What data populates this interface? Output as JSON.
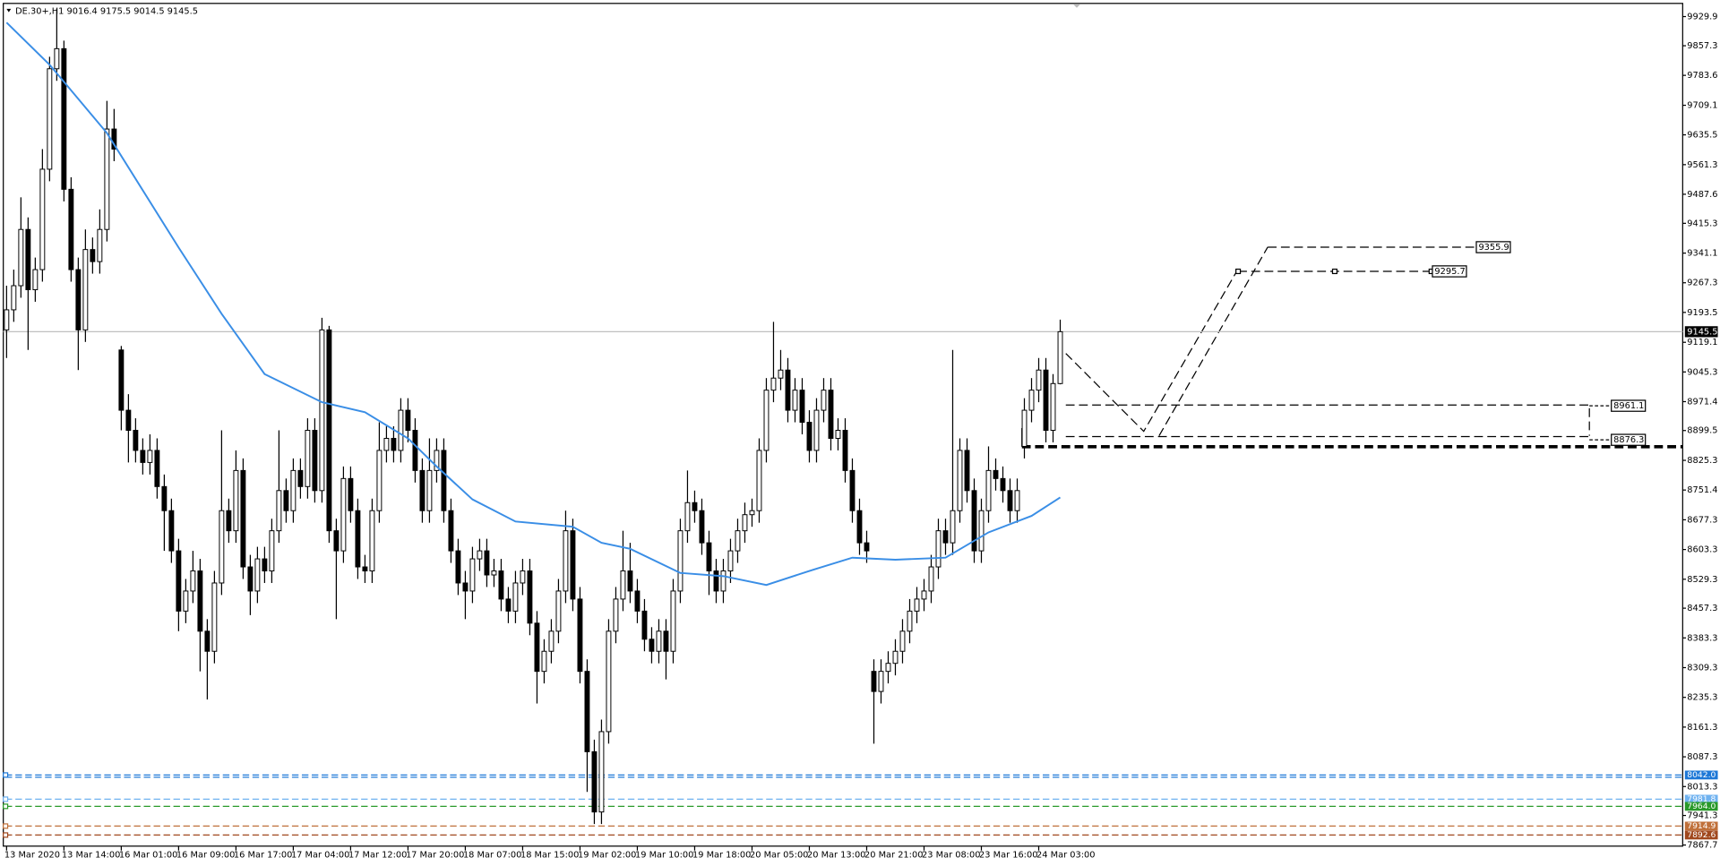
{
  "header": "DE.30+,H1  9016.4 9175.5 9014.5 9145.5",
  "chart_data": {
    "type": "candlestick",
    "categories": [
      "13 Mar 2020",
      null,
      null,
      null,
      null,
      null,
      null,
      null,
      "13 Mar 14:00",
      null,
      null,
      null,
      null,
      null,
      null,
      null,
      "16 Mar 01:00",
      null,
      null,
      null,
      null,
      null,
      null,
      null,
      "16 Mar 09:00",
      null,
      null,
      null,
      null,
      null,
      null,
      null,
      "16 Mar 17:00",
      null,
      null,
      null,
      null,
      null,
      null,
      null,
      "17 Mar 04:00",
      null,
      null,
      null,
      null,
      null,
      null,
      null,
      "17 Mar 12:00",
      null,
      null,
      null,
      null,
      null,
      null,
      null,
      "17 Mar 20:00",
      null,
      null,
      null,
      null,
      null,
      null,
      null,
      "18 Mar 07:00",
      null,
      null,
      null,
      null,
      null,
      null,
      null,
      "18 Mar 15:00",
      null,
      null,
      null,
      null,
      null,
      null,
      null,
      "19 Mar 02:00",
      null,
      null,
      null,
      null,
      null,
      null,
      null,
      "19 Mar 10:00",
      null,
      null,
      null,
      null,
      null,
      null,
      null,
      "19 Mar 18:00",
      null,
      null,
      null,
      null,
      null,
      null,
      null,
      "20 Mar 05:00",
      null,
      null,
      null,
      null,
      null,
      null,
      null,
      "20 Mar 13:00",
      null,
      null,
      null,
      null,
      null,
      null,
      null,
      "20 Mar 21:00",
      null,
      null,
      null,
      null,
      null,
      null,
      null,
      "23 Mar 08:00",
      null,
      null,
      null,
      null,
      null,
      null,
      null,
      "23 Mar 16:00",
      null,
      null,
      null,
      null,
      null,
      null,
      null,
      "24 Mar 03:00",
      null,
      null,
      null
    ],
    "ohlc": [
      [
        9150,
        9260,
        9080,
        9200
      ],
      [
        9200,
        9300,
        9170,
        9260
      ],
      [
        9260,
        9480,
        9230,
        9400
      ],
      [
        9400,
        9430,
        9100,
        9250
      ],
      [
        9250,
        9330,
        9220,
        9300
      ],
      [
        9300,
        9600,
        9270,
        9550
      ],
      [
        9550,
        9830,
        9520,
        9800
      ],
      [
        9800,
        9950,
        9770,
        9850
      ],
      [
        9850,
        9870,
        9470,
        9500
      ],
      [
        9500,
        9530,
        9270,
        9300
      ],
      [
        9300,
        9330,
        9050,
        9150
      ],
      [
        9150,
        9400,
        9120,
        9350
      ],
      [
        9350,
        9380,
        9290,
        9320
      ],
      [
        9320,
        9450,
        9290,
        9400
      ],
      [
        9400,
        9720,
        9370,
        9650
      ],
      [
        9650,
        9700,
        9570,
        9600
      ],
      [
        9100,
        9110,
        8900,
        8950
      ],
      [
        8950,
        8990,
        8820,
        8900
      ],
      [
        8900,
        8930,
        8820,
        8850
      ],
      [
        8850,
        8880,
        8790,
        8820
      ],
      [
        8820,
        8890,
        8790,
        8850
      ],
      [
        8850,
        8880,
        8730,
        8760
      ],
      [
        8760,
        8790,
        8600,
        8700
      ],
      [
        8700,
        8730,
        8570,
        8600
      ],
      [
        8600,
        8630,
        8400,
        8450
      ],
      [
        8450,
        8530,
        8420,
        8500
      ],
      [
        8500,
        8600,
        8470,
        8550
      ],
      [
        8550,
        8580,
        8300,
        8400
      ],
      [
        8400,
        8430,
        8230,
        8350
      ],
      [
        8350,
        8550,
        8320,
        8520
      ],
      [
        8520,
        8900,
        8490,
        8700
      ],
      [
        8700,
        8730,
        8620,
        8650
      ],
      [
        8650,
        8850,
        8620,
        8800
      ],
      [
        8800,
        8830,
        8530,
        8560
      ],
      [
        8560,
        8590,
        8440,
        8500
      ],
      [
        8500,
        8610,
        8470,
        8580
      ],
      [
        8580,
        8610,
        8520,
        8550
      ],
      [
        8550,
        8680,
        8520,
        8650
      ],
      [
        8650,
        8900,
        8620,
        8750
      ],
      [
        8750,
        8780,
        8670,
        8700
      ],
      [
        8700,
        8830,
        8670,
        8800
      ],
      [
        8800,
        8830,
        8730,
        8760
      ],
      [
        8760,
        8930,
        8730,
        8900
      ],
      [
        8900,
        8930,
        8720,
        8750
      ],
      [
        8750,
        9180,
        8720,
        9150
      ],
      [
        9150,
        9160,
        8620,
        8650
      ],
      [
        8650,
        8680,
        8430,
        8600
      ],
      [
        8600,
        8810,
        8570,
        8780
      ],
      [
        8780,
        8810,
        8670,
        8700
      ],
      [
        8700,
        8730,
        8530,
        8560
      ],
      [
        8560,
        8590,
        8520,
        8550
      ],
      [
        8550,
        8730,
        8520,
        8700
      ],
      [
        8700,
        8920,
        8670,
        8850
      ],
      [
        8850,
        8910,
        8820,
        8880
      ],
      [
        8880,
        8910,
        8820,
        8850
      ],
      [
        8850,
        8980,
        8820,
        8950
      ],
      [
        8950,
        8980,
        8870,
        8900
      ],
      [
        8900,
        8930,
        8770,
        8800
      ],
      [
        8800,
        8830,
        8670,
        8700
      ],
      [
        8700,
        8880,
        8670,
        8800
      ],
      [
        8800,
        8880,
        8770,
        8850
      ],
      [
        8850,
        8880,
        8670,
        8700
      ],
      [
        8700,
        8730,
        8570,
        8600
      ],
      [
        8600,
        8630,
        8490,
        8520
      ],
      [
        8520,
        8550,
        8430,
        8500
      ],
      [
        8500,
        8610,
        8470,
        8580
      ],
      [
        8580,
        8630,
        8550,
        8600
      ],
      [
        8600,
        8630,
        8510,
        8540
      ],
      [
        8540,
        8580,
        8510,
        8550
      ],
      [
        8550,
        8580,
        8450,
        8480
      ],
      [
        8480,
        8510,
        8420,
        8450
      ],
      [
        8450,
        8550,
        8420,
        8520
      ],
      [
        8520,
        8580,
        8490,
        8550
      ],
      [
        8550,
        8580,
        8390,
        8420
      ],
      [
        8420,
        8450,
        8220,
        8300
      ],
      [
        8300,
        8380,
        8270,
        8350
      ],
      [
        8350,
        8430,
        8320,
        8400
      ],
      [
        8400,
        8530,
        8370,
        8500
      ],
      [
        8500,
        8700,
        8470,
        8650
      ],
      [
        8650,
        8680,
        8450,
        8480
      ],
      [
        8480,
        8510,
        8270,
        8300
      ],
      [
        8300,
        8330,
        8000,
        8100
      ],
      [
        8100,
        8130,
        7920,
        7950
      ],
      [
        7950,
        8180,
        7920,
        8150
      ],
      [
        8150,
        8430,
        8120,
        8400
      ],
      [
        8400,
        8510,
        8370,
        8480
      ],
      [
        8480,
        8650,
        8450,
        8550
      ],
      [
        8550,
        8620,
        8470,
        8500
      ],
      [
        8500,
        8530,
        8420,
        8450
      ],
      [
        8450,
        8480,
        8350,
        8380
      ],
      [
        8380,
        8410,
        8320,
        8350
      ],
      [
        8350,
        8430,
        8320,
        8400
      ],
      [
        8400,
        8430,
        8280,
        8350
      ],
      [
        8350,
        8530,
        8320,
        8500
      ],
      [
        8500,
        8680,
        8470,
        8650
      ],
      [
        8650,
        8800,
        8620,
        8720
      ],
      [
        8720,
        8750,
        8670,
        8700
      ],
      [
        8700,
        8730,
        8590,
        8620
      ],
      [
        8620,
        8650,
        8490,
        8550
      ],
      [
        8550,
        8580,
        8470,
        8500
      ],
      [
        8500,
        8580,
        8470,
        8550
      ],
      [
        8550,
        8630,
        8520,
        8600
      ],
      [
        8600,
        8680,
        8570,
        8650
      ],
      [
        8650,
        8720,
        8620,
        8690
      ],
      [
        8690,
        8730,
        8660,
        8700
      ],
      [
        8700,
        8880,
        8670,
        8850
      ],
      [
        8850,
        9030,
        8820,
        9000
      ],
      [
        9000,
        9170,
        8970,
        9030
      ],
      [
        9030,
        9100,
        9000,
        9050
      ],
      [
        9050,
        9080,
        8920,
        8950
      ],
      [
        8950,
        9030,
        8920,
        9000
      ],
      [
        9000,
        9030,
        8890,
        8920
      ],
      [
        8920,
        8950,
        8820,
        8850
      ],
      [
        8850,
        8980,
        8820,
        8950
      ],
      [
        8950,
        9030,
        8920,
        9000
      ],
      [
        9000,
        9030,
        8850,
        8880
      ],
      [
        8880,
        8930,
        8850,
        8900
      ],
      [
        8900,
        8930,
        8770,
        8800
      ],
      [
        8800,
        8830,
        8670,
        8700
      ],
      [
        8700,
        8730,
        8590,
        8620
      ],
      [
        8620,
        8650,
        8570,
        8600
      ],
      [
        8300,
        8330,
        8120,
        8250
      ],
      [
        8250,
        8330,
        8220,
        8300
      ],
      [
        8300,
        8350,
        8270,
        8320
      ],
      [
        8320,
        8380,
        8290,
        8350
      ],
      [
        8350,
        8430,
        8320,
        8400
      ],
      [
        8400,
        8480,
        8370,
        8450
      ],
      [
        8450,
        8510,
        8420,
        8480
      ],
      [
        8480,
        8530,
        8450,
        8500
      ],
      [
        8500,
        8590,
        8470,
        8560
      ],
      [
        8560,
        8680,
        8530,
        8650
      ],
      [
        8650,
        8680,
        8590,
        8620
      ],
      [
        8620,
        9100,
        8590,
        8700
      ],
      [
        8700,
        8880,
        8670,
        8850
      ],
      [
        8850,
        8880,
        8720,
        8750
      ],
      [
        8750,
        8780,
        8570,
        8600
      ],
      [
        8600,
        8730,
        8570,
        8700
      ],
      [
        8700,
        8860,
        8670,
        8800
      ],
      [
        8800,
        8830,
        8750,
        8780
      ],
      [
        8780,
        8810,
        8720,
        8750
      ],
      [
        8750,
        8780,
        8670,
        8700
      ],
      [
        8700,
        8780,
        8670,
        8750
      ],
      [
        8860,
        8980,
        8830,
        8950
      ],
      [
        8950,
        9030,
        8920,
        9000
      ],
      [
        9000,
        9080,
        8970,
        9050
      ],
      [
        9050,
        9080,
        8870,
        8900
      ],
      [
        8900,
        9040,
        8870,
        9016.4
      ],
      [
        9016.4,
        9175.5,
        9014.5,
        9145.5
      ]
    ],
    "up_color": "#ffffff",
    "down_color": "#000000",
    "ma": {
      "color": "#3a8ee6",
      "x": [
        0,
        6,
        14,
        24,
        30,
        36,
        44,
        50,
        56,
        60,
        65,
        71,
        79,
        83,
        87,
        94,
        100,
        106,
        112,
        118,
        124,
        131,
        137,
        143,
        147
      ],
      "values": [
        9915,
        9810,
        9640,
        9355,
        9190,
        9040,
        8970,
        8945,
        8880,
        8810,
        8728,
        8673,
        8660,
        8620,
        8605,
        8545,
        8537,
        8515,
        8550,
        8583,
        8578,
        8583,
        8646,
        8687,
        8733
      ]
    },
    "ylim": [
      7867.7,
      9929.9
    ],
    "yticks": [
      9929.9,
      9857.3,
      9783.6,
      9709.1,
      9635.5,
      9561.3,
      9487.6,
      9415.3,
      9341.1,
      9267.3,
      9193.5,
      9119.1,
      9045.3,
      8971.4,
      8899.5,
      8825.3,
      8751.4,
      8677.3,
      8603.3,
      8529.3,
      8457.3,
      8383.3,
      8309.3,
      8235.3,
      8161.3,
      8087.3,
      8013.3,
      7941.3,
      7867.7
    ],
    "bid": 9145.5,
    "levels": [
      9355.9,
      9295.7,
      8961.1,
      8876.3
    ],
    "hlines": [
      {
        "value": 8042,
        "label": "8042.0",
        "color": "#1e78d7"
      },
      {
        "value": 7981.8,
        "color": "#6fb2f0"
      },
      {
        "value": 7964,
        "label": "7964.0",
        "color": "#2a9a2a"
      },
      {
        "value": 7914.9,
        "color": "#c0703a"
      },
      {
        "value": 7892.6,
        "color": "#a0481e"
      }
    ]
  }
}
